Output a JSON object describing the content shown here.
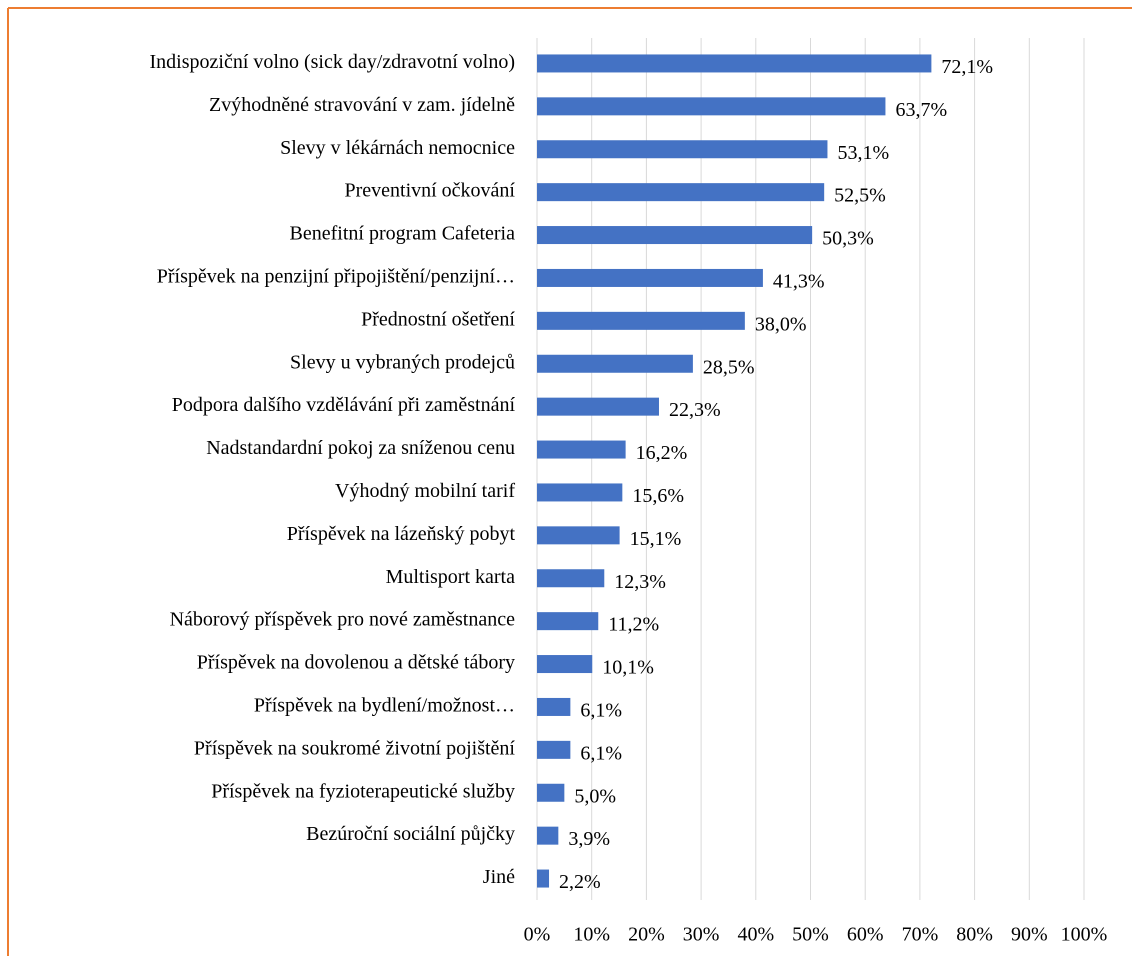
{
  "chart_data": {
    "type": "bar",
    "orientation": "horizontal",
    "color": "#4472c4",
    "grid": true,
    "categories": [
      "Indispoziční volno (sick day/zdravotní volno)",
      "Zvýhodněné stravování v zam. jídelně",
      "Slevy v lékárnách nemocnice",
      "Preventivní očkování",
      "Benefitní program Cafeteria",
      "Příspěvek na penzijní připojištění/penzijní…",
      "Přednostní ošetření",
      "Slevy u vybraných prodejců",
      "Podpora dalšího vzdělávání při zaměstnání",
      "Nadstandardní pokoj za sníženou cenu",
      "Výhodný mobilní tarif",
      "Příspěvek na lázeňský pobyt",
      "Multisport karta",
      "Náborový příspěvek pro nové zaměstnance",
      "Příspěvek na dovolenou a dětské tábory",
      "Příspěvek na bydlení/možnost…",
      "Příspěvek na soukromé životní pojištění",
      "Příspěvek na fyzioterapeutické služby",
      "Bezúroční sociální půjčky",
      "Jiné"
    ],
    "values": [
      72.1,
      63.7,
      53.1,
      52.5,
      50.3,
      41.3,
      38.0,
      28.5,
      22.3,
      16.2,
      15.6,
      15.1,
      12.3,
      11.2,
      10.1,
      6.1,
      6.1,
      5.0,
      3.9,
      2.2
    ],
    "value_labels": [
      "72,1%",
      "63,7%",
      "53,1%",
      "52,5%",
      "50,3%",
      "41,3%",
      "38,0%",
      "28,5%",
      "22,3%",
      "16,2%",
      "15,6%",
      "15,1%",
      "12,3%",
      "11,2%",
      "10,1%",
      "6,1%",
      "6,1%",
      "5,0%",
      "3,9%",
      "2,2%"
    ],
    "xlim": [
      0,
      100
    ],
    "xticks": [
      {
        "value": 0,
        "label": "0%"
      },
      {
        "value": 10,
        "label": "10%"
      },
      {
        "value": 20,
        "label": "20%"
      },
      {
        "value": 30,
        "label": "30%"
      },
      {
        "value": 40,
        "label": "40%"
      },
      {
        "value": 50,
        "label": "50%"
      },
      {
        "value": 60,
        "label": "60%"
      },
      {
        "value": 70,
        "label": "70%"
      },
      {
        "value": 80,
        "label": "80%"
      },
      {
        "value": 90,
        "label": "90%"
      },
      {
        "value": 100,
        "label": "100%"
      }
    ]
  }
}
